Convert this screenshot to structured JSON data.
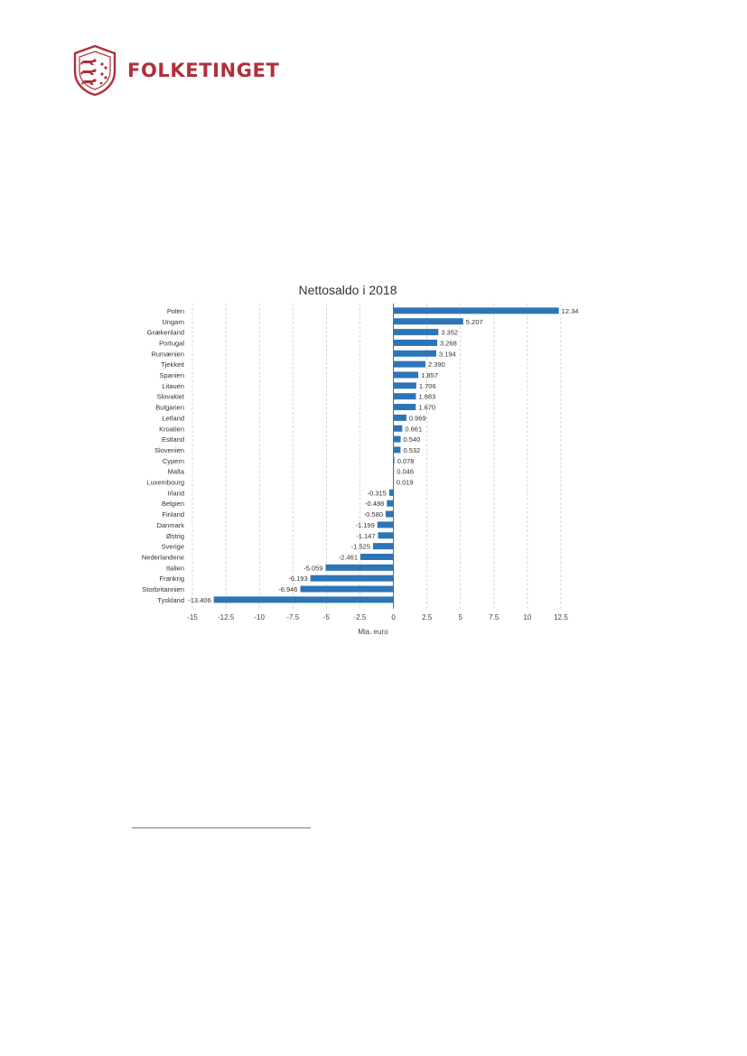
{
  "header": {
    "logo_text": "FOLKETINGET",
    "logo_icon": "folketinget-crest-icon",
    "brand_color": "#b0303a"
  },
  "chart_data": {
    "type": "bar",
    "orientation": "horizontal",
    "title": "Nettosaldo i 2018",
    "xlabel": "Mia. euro",
    "ylabel": "",
    "xlim": [
      -15,
      12.5
    ],
    "xticks": [
      -15,
      -12.5,
      -10,
      -7.5,
      -5,
      -2.5,
      0,
      2.5,
      5,
      7.5,
      10,
      12.5
    ],
    "grid": "vertical dashed",
    "bar_color": "#2e75b6",
    "categories": [
      "Polen",
      "Ungarn",
      "Grækenland",
      "Portugal",
      "Rumænien",
      "Tjekkeit",
      "Spanien",
      "Litauen",
      "Slovakiet",
      "Bulgarien",
      "Letland",
      "Kroatien",
      "Estland",
      "Slovenien",
      "Cypern",
      "Malta",
      "Luxembourg",
      "Irland",
      "Belgien",
      "Finland",
      "Danmark",
      "Østrig",
      "Sverige",
      "Nederlandene",
      "Italien",
      "Frankrig",
      "Storbritannien",
      "Tyskland"
    ],
    "values": [
      12.343,
      5.207,
      3.352,
      3.268,
      3.194,
      2.39,
      1.857,
      1.706,
      1.683,
      1.67,
      0.969,
      0.661,
      0.54,
      0.532,
      0.078,
      0.046,
      0.019,
      -0.315,
      -0.488,
      -0.58,
      -1.199,
      -1.147,
      -1.525,
      -2.461,
      -5.059,
      -6.193,
      -6.946,
      -13.406
    ],
    "value_labels": [
      "12.343",
      "5.207",
      "3.352",
      "3.268",
      "3.194",
      "2.390",
      "1.857",
      "1.706",
      "1.683",
      "1.670",
      "0.969",
      "0.661",
      "0.540",
      "0.532",
      "0.078",
      "0.046",
      "0.019",
      "-0.315",
      "-0.488",
      "-0.580",
      "-1.199",
      "-1.147",
      "-1.525",
      "-2.461",
      "-5.059",
      "-6.193",
      "-6.946",
      "-13.406"
    ]
  }
}
